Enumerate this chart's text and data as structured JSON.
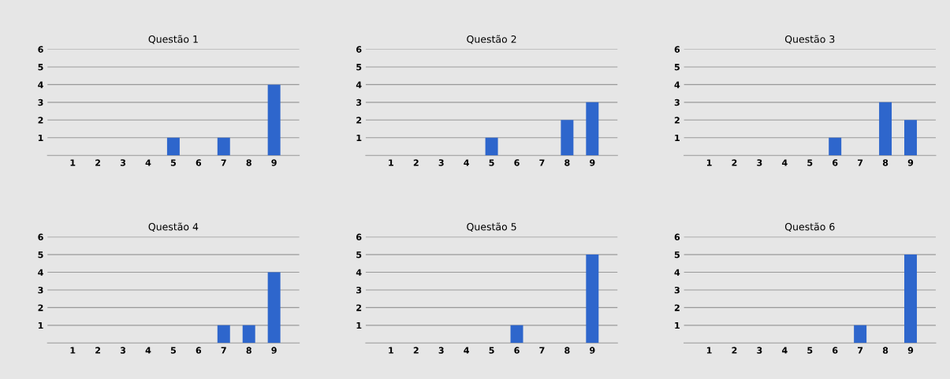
{
  "chart_data": [
    {
      "type": "bar",
      "title": "Questão 1",
      "categories": [
        "1",
        "2",
        "3",
        "4",
        "5",
        "6",
        "7",
        "8",
        "9"
      ],
      "values": [
        0,
        0,
        0,
        0,
        1,
        0,
        1,
        0,
        4
      ],
      "color": "#2e66cc",
      "ylim": [
        0,
        6
      ],
      "yticks": [
        1,
        2,
        3,
        4,
        5,
        6
      ],
      "grid": "y"
    },
    {
      "type": "bar",
      "title": "Questão 2",
      "categories": [
        "1",
        "2",
        "3",
        "4",
        "5",
        "6",
        "7",
        "8",
        "9"
      ],
      "values": [
        0,
        0,
        0,
        0,
        1,
        0,
        0,
        2,
        3
      ],
      "color": "#2e66cc",
      "ylim": [
        0,
        6
      ],
      "yticks": [
        1,
        2,
        3,
        4,
        5,
        6
      ],
      "grid": "y"
    },
    {
      "type": "bar",
      "title": "Questão 3",
      "categories": [
        "1",
        "2",
        "3",
        "4",
        "5",
        "6",
        "7",
        "8",
        "9"
      ],
      "values": [
        0,
        0,
        0,
        0,
        0,
        1,
        0,
        3,
        2
      ],
      "color": "#2e66cc",
      "ylim": [
        0,
        6
      ],
      "yticks": [
        1,
        2,
        3,
        4,
        5,
        6
      ],
      "grid": "y"
    },
    {
      "type": "bar",
      "title": "Questão 4",
      "categories": [
        "1",
        "2",
        "3",
        "4",
        "5",
        "6",
        "7",
        "8",
        "9"
      ],
      "values": [
        0,
        0,
        0,
        0,
        0,
        0,
        1,
        1,
        4
      ],
      "color": "#2e66cc",
      "ylim": [
        0,
        6
      ],
      "yticks": [
        1,
        2,
        3,
        4,
        5,
        6
      ],
      "grid": "y"
    },
    {
      "type": "bar",
      "title": "Questão 5",
      "categories": [
        "1",
        "2",
        "3",
        "4",
        "5",
        "6",
        "7",
        "8",
        "9"
      ],
      "values": [
        0,
        0,
        0,
        0,
        0,
        1,
        0,
        0,
        5
      ],
      "color": "#2e66cc",
      "ylim": [
        0,
        6
      ],
      "yticks": [
        1,
        2,
        3,
        4,
        5,
        6
      ],
      "grid": "y"
    },
    {
      "type": "bar",
      "title": "Questão 6",
      "categories": [
        "1",
        "2",
        "3",
        "4",
        "5",
        "6",
        "7",
        "8",
        "9"
      ],
      "values": [
        0,
        0,
        0,
        0,
        0,
        0,
        1,
        0,
        5
      ],
      "color": "#2e66cc",
      "ylim": [
        0,
        6
      ],
      "yticks": [
        1,
        2,
        3,
        4,
        5,
        6
      ],
      "grid": "y"
    }
  ]
}
